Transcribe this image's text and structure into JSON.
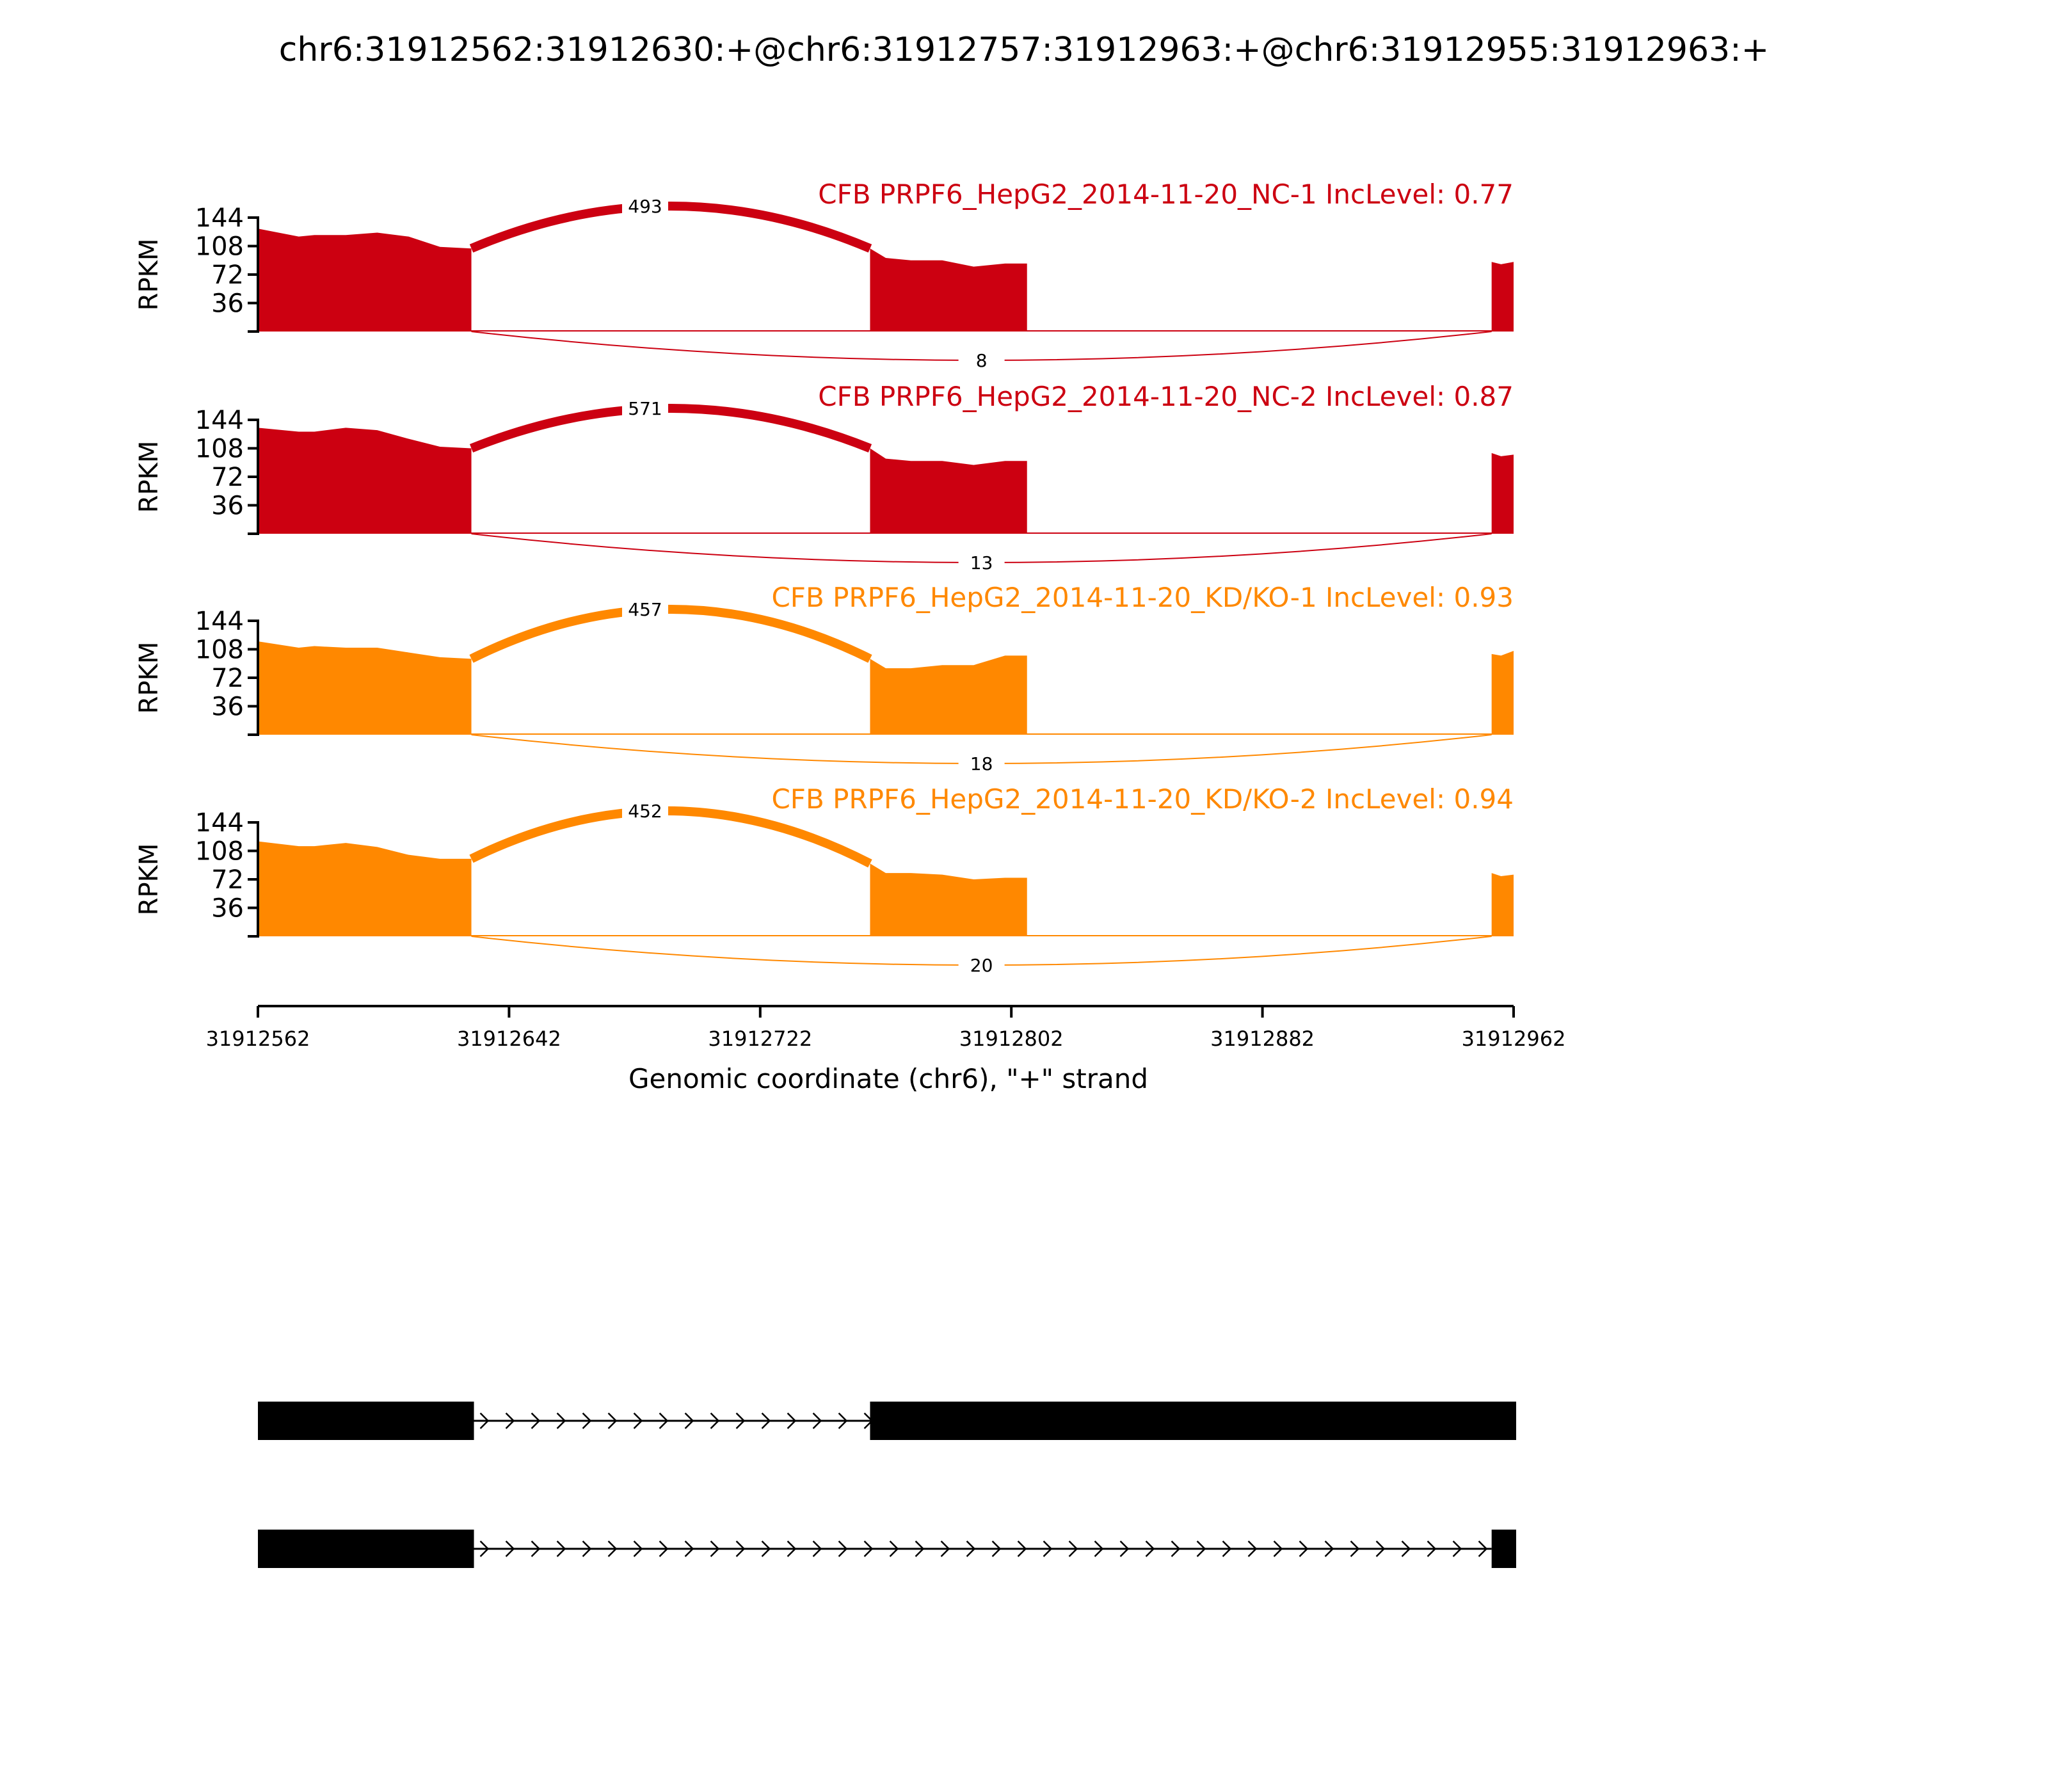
{
  "chart_data": {
    "type": "sashimi",
    "title": "chr6:31912562:31912630:+@chr6:31912757:31912963:+@chr6:31912955:31912963:+",
    "xlabel": "Genomic coordinate (chr6), \"+\" strand",
    "ylabel": "RPKM",
    "xlim": [
      31912562,
      31912962
    ],
    "x_ticks": [
      31912562,
      31912642,
      31912722,
      31912802,
      31912882,
      31912962
    ],
    "ylim": [
      0,
      144
    ],
    "y_ticks": [
      36,
      72,
      108,
      144
    ],
    "exons": [
      [
        31912562,
        31912630
      ],
      [
        31912757,
        31912807
      ],
      [
        31912955,
        31912962
      ]
    ],
    "coverage_x": [
      31912562,
      31912575,
      31912580,
      31912590,
      31912600,
      31912610,
      31912620,
      31912630,
      31912757,
      31912762,
      31912770,
      31912780,
      31912790,
      31912800,
      31912807,
      31912955,
      31912958,
      31912962
    ],
    "samples": [
      {
        "name": "CFB PRPF6_HepG2_2014-11-20_NC-1",
        "inclevel": "0.77",
        "label": "CFB PRPF6_HepG2_2014-11-20_NC-1 IncLevel: 0.77",
        "color": "#cc0011",
        "coverage": [
          130,
          120,
          122,
          122,
          125,
          120,
          107,
          105,
          105,
          93,
          90,
          90,
          82,
          86,
          86,
          88,
          85,
          88
        ],
        "junctions": [
          {
            "start": 31912630,
            "end": 31912757,
            "count": "493",
            "side": "above"
          },
          {
            "start": 31912630,
            "end": 31912955,
            "count": "8",
            "side": "below"
          }
        ]
      },
      {
        "name": "CFB PRPF6_HepG2_2014-11-20_NC-2",
        "inclevel": "0.87",
        "label": "CFB PRPF6_HepG2_2014-11-20_NC-2 IncLevel: 0.87",
        "color": "#cc0011",
        "coverage": [
          134,
          129,
          129,
          134,
          131,
          120,
          110,
          108,
          108,
          95,
          92,
          92,
          87,
          92,
          92,
          102,
          98,
          100
        ],
        "junctions": [
          {
            "start": 31912630,
            "end": 31912757,
            "count": "571",
            "side": "above"
          },
          {
            "start": 31912630,
            "end": 31912955,
            "count": "13",
            "side": "below"
          }
        ]
      },
      {
        "name": "CFB PRPF6_HepG2_2014-11-20_KD/KO-1",
        "inclevel": "0.93",
        "label": "CFB PRPF6_HepG2_2014-11-20_KD/KO-1 IncLevel: 0.93",
        "color": "#ff8800",
        "coverage": [
          118,
          110,
          112,
          110,
          110,
          104,
          98,
          96,
          96,
          84,
          84,
          88,
          88,
          100,
          100,
          102,
          100,
          106
        ],
        "junctions": [
          {
            "start": 31912630,
            "end": 31912757,
            "count": "457",
            "side": "above"
          },
          {
            "start": 31912630,
            "end": 31912955,
            "count": "18",
            "side": "below"
          }
        ]
      },
      {
        "name": "CFB PRPF6_HepG2_2014-11-20_KD/KO-2",
        "inclevel": "0.94",
        "label": "CFB PRPF6_HepG2_2014-11-20_KD/KO-2 IncLevel: 0.94",
        "color": "#ff8800",
        "coverage": [
          120,
          114,
          114,
          118,
          113,
          103,
          98,
          98,
          92,
          80,
          80,
          78,
          72,
          74,
          74,
          80,
          76,
          78
        ],
        "junctions": [
          {
            "start": 31912630,
            "end": 31912757,
            "count": "452",
            "side": "above"
          },
          {
            "start": 31912630,
            "end": 31912955,
            "count": "20",
            "side": "below"
          }
        ]
      }
    ],
    "isoforms": [
      {
        "exons": [
          [
            31912562,
            31912630
          ],
          [
            31912757,
            31912962
          ]
        ]
      },
      {
        "exons": [
          [
            31912562,
            31912630
          ],
          [
            31912955,
            31912962
          ]
        ]
      }
    ]
  }
}
